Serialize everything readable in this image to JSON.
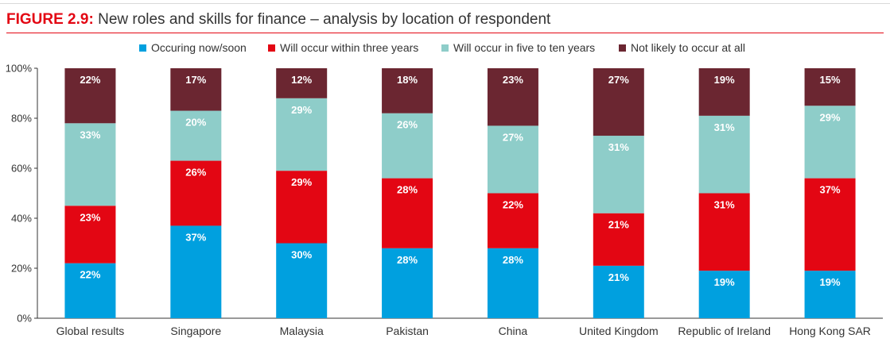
{
  "figure": {
    "label": "FIGURE 2.9:",
    "title": " New roles and skills for finance – analysis by location of respondent"
  },
  "colors": {
    "occurring_now": "#00a0df",
    "within_three": "#e30613",
    "five_to_ten": "#8ecdc9",
    "not_likely": "#6b2631",
    "accent": "#e30613"
  },
  "chart_data": {
    "type": "bar",
    "stacked": true,
    "categories": [
      "Global results",
      "Singapore",
      "Malaysia",
      "Pakistan",
      "China",
      "United Kingdom",
      "Republic of Ireland",
      "Hong Kong SAR"
    ],
    "series": [
      {
        "name": "Occuring now/soon",
        "values": [
          22,
          37,
          30,
          28,
          28,
          21,
          19,
          19
        ],
        "labels": [
          "22%",
          "37%",
          "30%",
          "28%",
          "28%",
          "21%",
          "19%",
          "19%"
        ]
      },
      {
        "name": "Will occur within three years",
        "values": [
          23,
          26,
          29,
          28,
          22,
          21,
          31,
          37
        ],
        "labels": [
          "23%",
          "26%",
          "29%",
          "28%",
          "22%",
          "21%",
          "31%",
          "37%"
        ]
      },
      {
        "name": "Will occur in five to ten years",
        "values": [
          33,
          20,
          29,
          26,
          27,
          31,
          31,
          29
        ],
        "labels": [
          "33%",
          "20%",
          "29%",
          "26%",
          "27%",
          "31%",
          "31%",
          "29%"
        ]
      },
      {
        "name": "Not likely to occur at all",
        "values": [
          22,
          17,
          12,
          18,
          23,
          27,
          19,
          15
        ],
        "labels": [
          "22%",
          "17%",
          "12%",
          "18%",
          "23%",
          "27%",
          "19%",
          "15%"
        ]
      }
    ],
    "ylim": [
      0,
      100
    ],
    "yticks": [
      "0%",
      "20%",
      "40%",
      "60%",
      "80%",
      "100%"
    ],
    "legend_position": "top-center",
    "grid": false
  }
}
